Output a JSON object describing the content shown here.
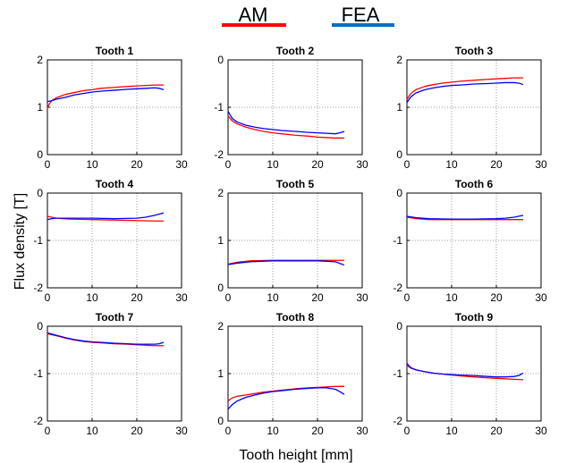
{
  "legend": {
    "entries": [
      {
        "label": "AM",
        "color": "#ff0000"
      },
      {
        "label": "FEA",
        "color": "#0070c0"
      }
    ]
  },
  "xlabel": "Tooth height [mm]",
  "ylabel": "Flux density [T]",
  "colors": {
    "am_line": "#ff0000",
    "fea_line": "#0000ff",
    "axis": "#000000",
    "grid": "#7f7f7f"
  },
  "chart_data": [
    {
      "type": "line",
      "title": "Tooth 1",
      "grid": true,
      "xlim": [
        0,
        30
      ],
      "ylim": [
        0,
        2
      ],
      "xticks": [
        "0",
        "10",
        "20",
        "30"
      ],
      "yticks": [
        "0",
        "1",
        "2"
      ],
      "series": [
        {
          "name": "AM",
          "x": [
            0,
            0.5,
            1,
            2,
            4,
            6,
            8,
            10,
            12,
            15,
            18,
            20,
            22,
            24,
            26
          ],
          "y": [
            0.98,
            1.08,
            1.14,
            1.2,
            1.27,
            1.31,
            1.35,
            1.37,
            1.4,
            1.42,
            1.44,
            1.45,
            1.46,
            1.47,
            1.47
          ]
        },
        {
          "name": "FEA",
          "x": [
            0,
            1,
            2,
            4,
            6,
            8,
            10,
            12,
            15,
            18,
            20,
            22,
            24,
            25,
            26
          ],
          "y": [
            1.12,
            1.14,
            1.17,
            1.21,
            1.26,
            1.29,
            1.32,
            1.34,
            1.36,
            1.38,
            1.39,
            1.4,
            1.41,
            1.4,
            1.37
          ]
        }
      ]
    },
    {
      "type": "line",
      "title": "Tooth 2",
      "grid": true,
      "xlim": [
        0,
        30
      ],
      "ylim": [
        -2,
        0
      ],
      "xticks": [
        "0",
        "10",
        "20",
        "30"
      ],
      "yticks": [
        "-2",
        "-1",
        "0"
      ],
      "series": [
        {
          "name": "AM",
          "x": [
            0,
            0.5,
            1,
            2,
            4,
            6,
            8,
            10,
            12,
            15,
            18,
            20,
            22,
            24,
            26
          ],
          "y": [
            -1.18,
            -1.24,
            -1.29,
            -1.35,
            -1.42,
            -1.47,
            -1.51,
            -1.54,
            -1.56,
            -1.59,
            -1.61,
            -1.63,
            -1.64,
            -1.65,
            -1.65
          ]
        },
        {
          "name": "FEA",
          "x": [
            0,
            0.5,
            1,
            2,
            4,
            6,
            8,
            10,
            12,
            15,
            18,
            20,
            22,
            24,
            25,
            26
          ],
          "y": [
            -1.08,
            -1.17,
            -1.24,
            -1.31,
            -1.38,
            -1.42,
            -1.45,
            -1.47,
            -1.49,
            -1.51,
            -1.53,
            -1.54,
            -1.55,
            -1.56,
            -1.54,
            -1.51
          ]
        }
      ]
    },
    {
      "type": "line",
      "title": "Tooth 3",
      "grid": true,
      "xlim": [
        0,
        30
      ],
      "ylim": [
        0,
        2
      ],
      "xticks": [
        "0",
        "10",
        "20",
        "30"
      ],
      "yticks": [
        "0",
        "1",
        "2"
      ],
      "series": [
        {
          "name": "AM",
          "x": [
            0,
            0.5,
            1,
            2,
            4,
            6,
            8,
            10,
            12,
            15,
            18,
            20,
            22,
            24,
            26
          ],
          "y": [
            1.16,
            1.24,
            1.3,
            1.37,
            1.44,
            1.48,
            1.51,
            1.53,
            1.55,
            1.57,
            1.59,
            1.6,
            1.61,
            1.62,
            1.62
          ]
        },
        {
          "name": "FEA",
          "x": [
            0,
            0.5,
            1,
            2,
            4,
            6,
            8,
            10,
            12,
            15,
            18,
            20,
            22,
            24,
            25,
            26
          ],
          "y": [
            1.1,
            1.17,
            1.23,
            1.3,
            1.37,
            1.41,
            1.44,
            1.46,
            1.47,
            1.49,
            1.5,
            1.51,
            1.52,
            1.52,
            1.51,
            1.48
          ]
        }
      ]
    },
    {
      "type": "line",
      "title": "Tooth 4",
      "grid": true,
      "xlim": [
        0,
        30
      ],
      "ylim": [
        -2,
        0
      ],
      "xticks": [
        "0",
        "10",
        "20",
        "30"
      ],
      "yticks": [
        "-2",
        "-1",
        "0"
      ],
      "series": [
        {
          "name": "AM",
          "x": [
            0,
            2,
            5,
            10,
            15,
            20,
            24,
            26
          ],
          "y": [
            -0.49,
            -0.53,
            -0.55,
            -0.56,
            -0.57,
            -0.58,
            -0.59,
            -0.59
          ]
        },
        {
          "name": "FEA",
          "x": [
            0,
            1,
            2,
            5,
            10,
            15,
            20,
            22,
            24,
            26
          ],
          "y": [
            -0.56,
            -0.54,
            -0.53,
            -0.53,
            -0.53,
            -0.54,
            -0.53,
            -0.51,
            -0.47,
            -0.42
          ]
        }
      ]
    },
    {
      "type": "line",
      "title": "Tooth 5",
      "grid": true,
      "xlim": [
        0,
        30
      ],
      "ylim": [
        0,
        2
      ],
      "xticks": [
        "0",
        "10",
        "20",
        "30"
      ],
      "yticks": [
        "0",
        "1",
        "2"
      ],
      "series": [
        {
          "name": "AM",
          "x": [
            0,
            2,
            5,
            10,
            15,
            20,
            24,
            26
          ],
          "y": [
            0.5,
            0.54,
            0.57,
            0.58,
            0.58,
            0.58,
            0.58,
            0.58
          ]
        },
        {
          "name": "FEA",
          "x": [
            0,
            2,
            5,
            10,
            15,
            20,
            22,
            24,
            26
          ],
          "y": [
            0.49,
            0.52,
            0.55,
            0.57,
            0.57,
            0.57,
            0.56,
            0.55,
            0.48
          ]
        }
      ]
    },
    {
      "type": "line",
      "title": "Tooth 6",
      "grid": true,
      "xlim": [
        0,
        30
      ],
      "ylim": [
        -2,
        0
      ],
      "xticks": [
        "0",
        "10",
        "20",
        "30"
      ],
      "yticks": [
        "-2",
        "-1",
        "0"
      ],
      "series": [
        {
          "name": "AM",
          "x": [
            0,
            2,
            5,
            10,
            15,
            20,
            24,
            26
          ],
          "y": [
            -0.51,
            -0.54,
            -0.56,
            -0.56,
            -0.56,
            -0.56,
            -0.56,
            -0.56
          ]
        },
        {
          "name": "FEA",
          "x": [
            0,
            2,
            5,
            10,
            15,
            20,
            22,
            24,
            26
          ],
          "y": [
            -0.49,
            -0.52,
            -0.54,
            -0.55,
            -0.55,
            -0.54,
            -0.53,
            -0.51,
            -0.47
          ]
        }
      ]
    },
    {
      "type": "line",
      "title": "Tooth 7",
      "grid": true,
      "xlim": [
        0,
        30
      ],
      "ylim": [
        -2,
        0
      ],
      "xticks": [
        "0",
        "10",
        "20",
        "30"
      ],
      "yticks": [
        "-2",
        "-1",
        "0"
      ],
      "series": [
        {
          "name": "AM",
          "x": [
            0,
            2,
            4,
            6,
            8,
            10,
            12,
            15,
            18,
            20,
            22,
            24,
            26
          ],
          "y": [
            -0.16,
            -0.2,
            -0.25,
            -0.29,
            -0.32,
            -0.34,
            -0.35,
            -0.37,
            -0.38,
            -0.39,
            -0.4,
            -0.41,
            -0.41
          ]
        },
        {
          "name": "FEA",
          "x": [
            0,
            2,
            4,
            6,
            8,
            10,
            12,
            15,
            18,
            20,
            22,
            24,
            25,
            26
          ],
          "y": [
            -0.14,
            -0.19,
            -0.24,
            -0.28,
            -0.31,
            -0.33,
            -0.34,
            -0.36,
            -0.37,
            -0.38,
            -0.38,
            -0.38,
            -0.37,
            -0.34
          ]
        }
      ]
    },
    {
      "type": "line",
      "title": "Tooth 8",
      "grid": true,
      "xlim": [
        0,
        30
      ],
      "ylim": [
        0,
        2
      ],
      "xticks": [
        "0",
        "10",
        "20",
        "30"
      ],
      "yticks": [
        "0",
        "1",
        "2"
      ],
      "series": [
        {
          "name": "AM",
          "x": [
            0,
            0.5,
            1,
            2,
            4,
            6,
            8,
            10,
            12,
            15,
            18,
            20,
            22,
            24,
            26
          ],
          "y": [
            0.42,
            0.46,
            0.49,
            0.52,
            0.55,
            0.58,
            0.61,
            0.63,
            0.65,
            0.68,
            0.7,
            0.71,
            0.72,
            0.73,
            0.73
          ]
        },
        {
          "name": "FEA",
          "x": [
            0,
            0.5,
            1,
            2,
            4,
            6,
            8,
            10,
            12,
            15,
            18,
            20,
            22,
            24,
            25,
            26
          ],
          "y": [
            0.25,
            0.3,
            0.35,
            0.42,
            0.5,
            0.55,
            0.59,
            0.62,
            0.64,
            0.67,
            0.69,
            0.7,
            0.7,
            0.67,
            0.62,
            0.56
          ]
        }
      ]
    },
    {
      "type": "line",
      "title": "Tooth 9",
      "grid": true,
      "xlim": [
        0,
        30
      ],
      "ylim": [
        -2,
        0
      ],
      "xticks": [
        "0",
        "10",
        "20",
        "30"
      ],
      "yticks": [
        "-2",
        "-1",
        "0"
      ],
      "series": [
        {
          "name": "AM",
          "x": [
            0,
            0.5,
            1,
            2,
            4,
            6,
            8,
            10,
            12,
            15,
            18,
            20,
            22,
            24,
            26
          ],
          "y": [
            -0.82,
            -0.86,
            -0.89,
            -0.92,
            -0.96,
            -0.99,
            -1.01,
            -1.03,
            -1.05,
            -1.07,
            -1.09,
            -1.1,
            -1.11,
            -1.12,
            -1.13
          ]
        },
        {
          "name": "FEA",
          "x": [
            0,
            0.5,
            1,
            2,
            4,
            6,
            8,
            10,
            12,
            15,
            18,
            20,
            22,
            24,
            25,
            26
          ],
          "y": [
            -0.78,
            -0.84,
            -0.88,
            -0.92,
            -0.96,
            -0.99,
            -1.01,
            -1.02,
            -1.03,
            -1.04,
            -1.06,
            -1.07,
            -1.07,
            -1.06,
            -1.04,
            -0.99
          ]
        }
      ]
    }
  ]
}
